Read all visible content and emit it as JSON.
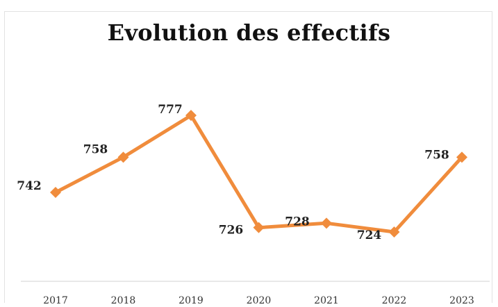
{
  "chart_data": {
    "type": "line",
    "title": "Evolution des effectifs",
    "categories": [
      "2017",
      "2018",
      "2019",
      "2020",
      "2021",
      "2022",
      "2023"
    ],
    "series": [
      {
        "values": [
          742,
          758,
          777,
          726,
          728,
          724,
          758
        ]
      }
    ],
    "data_labels": [
      "742",
      "758",
      "777",
      "726",
      "728",
      "724",
      "758"
    ],
    "ylim": [
      700,
      790
    ],
    "grid": false,
    "line_color": "#f08c3c",
    "marker": "diamond"
  }
}
